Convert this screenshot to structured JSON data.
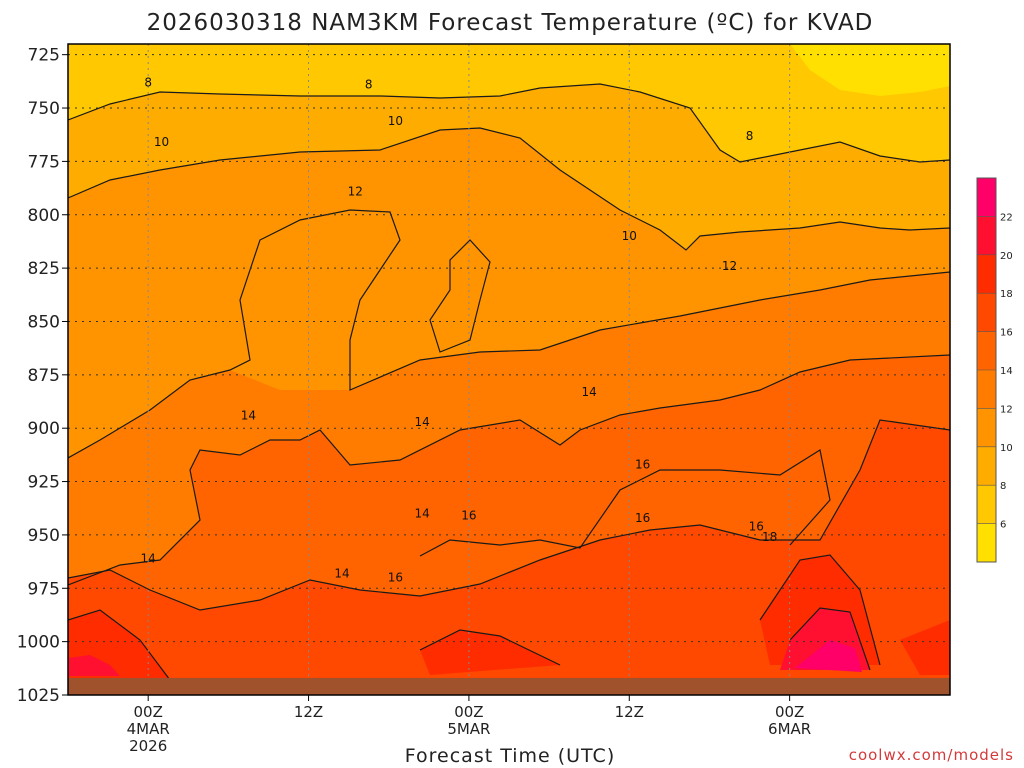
{
  "chart_data": {
    "type": "heatmap",
    "title": "2026030318 NAM3KM Forecast Temperature (ºC) for KVAD",
    "xlabel": "Forecast Time (UTC)",
    "ylabel": "",
    "credit": "coolwx.com/models",
    "y_ticks": [
      "725",
      "750",
      "775",
      "800",
      "825",
      "850",
      "875",
      "900",
      "925",
      "950",
      "975",
      "1000",
      "1025"
    ],
    "y_range": [
      720,
      1025
    ],
    "x_range_hours_from_00z_4mar": [
      -6,
      60
    ],
    "x_ticks": [
      {
        "hours": 0,
        "lines": [
          "00Z",
          "4MAR",
          "2026"
        ]
      },
      {
        "hours": 12,
        "lines": [
          "12Z"
        ]
      },
      {
        "hours": 24,
        "lines": [
          "00Z",
          "5MAR"
        ]
      },
      {
        "hours": 36,
        "lines": [
          "12Z"
        ]
      },
      {
        "hours": 48,
        "lines": [
          "00Z",
          "6MAR"
        ]
      }
    ],
    "legend_levels": [
      "6",
      "8",
      "10",
      "12",
      "14",
      "16",
      "18",
      "20",
      "22"
    ],
    "legend_colors": [
      "#ffe000",
      "#ffc800",
      "#ffac00",
      "#ff9400",
      "#ff7c00",
      "#ff6400",
      "#ff4800",
      "#ff2c00",
      "#ff1030",
      "#ff0068"
    ],
    "contour_labels": [
      {
        "text": "8",
        "hours": 0,
        "p": 738
      },
      {
        "text": "8",
        "hours": 16.5,
        "p": 739
      },
      {
        "text": "8",
        "hours": 45,
        "p": 763
      },
      {
        "text": "10",
        "hours": 1,
        "p": 766
      },
      {
        "text": "10",
        "hours": 18.5,
        "p": 756
      },
      {
        "text": "10",
        "hours": 36,
        "p": 810
      },
      {
        "text": "12",
        "hours": 15.5,
        "p": 789
      },
      {
        "text": "12",
        "hours": 43.5,
        "p": 824
      },
      {
        "text": "14",
        "hours": 7.5,
        "p": 894
      },
      {
        "text": "14",
        "hours": 20.5,
        "p": 897
      },
      {
        "text": "14",
        "hours": 33,
        "p": 883
      },
      {
        "text": "14",
        "hours": 0,
        "p": 961
      },
      {
        "text": "14",
        "hours": 14.5,
        "p": 968
      },
      {
        "text": "14",
        "hours": 20.5,
        "p": 940
      },
      {
        "text": "16",
        "hours": 37,
        "p": 917
      },
      {
        "text": "16",
        "hours": 24,
        "p": 941
      },
      {
        "text": "16",
        "hours": 37,
        "p": 942
      },
      {
        "text": "16",
        "hours": 45.5,
        "p": 946
      },
      {
        "text": "16",
        "hours": 18.5,
        "p": 970
      },
      {
        "text": "18",
        "hours": 46.5,
        "p": 951
      }
    ],
    "surface_pressure_hPa": 1017
  }
}
